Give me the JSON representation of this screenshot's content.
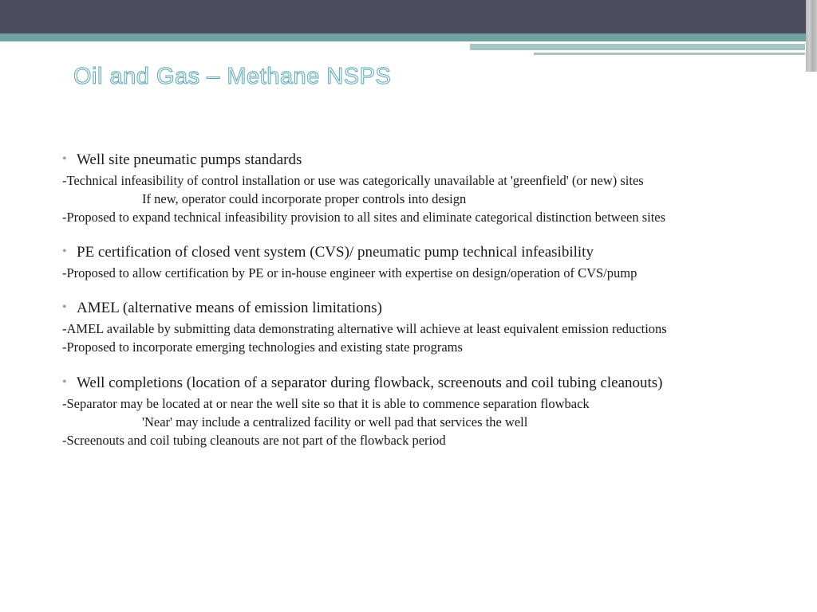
{
  "title": "Oil and Gas – Methane NSPS",
  "colors": {
    "top_bar_dark": "#4a4e5c",
    "top_bar_teal": "#6fa3a3",
    "accent_light": "#a8c5c5",
    "title_stroke": "#5aa8b8",
    "bullet_color": "#a890b8",
    "text_color": "#1a1a1a",
    "background": "#ffffff"
  },
  "typography": {
    "title_fontsize": 29,
    "bullet_fontsize": 19,
    "body_fontsize": 16.5,
    "body_family": "Georgia"
  },
  "sections": [
    {
      "heading": "Well site pneumatic pumps standards",
      "lines": [
        {
          "type": "dash",
          "text": "-Technical infeasibility of control installation or use was categorically unavailable at 'greenfield' (or new) sites"
        },
        {
          "type": "indent",
          "text": "If new, operator could incorporate proper controls into design"
        },
        {
          "type": "dash",
          "text": "-Proposed to expand technical infeasibility provision to all sites and eliminate categorical distinction between sites"
        }
      ]
    },
    {
      "heading": "PE certification of closed vent system (CVS)/ pneumatic pump technical infeasibility",
      "lines": [
        {
          "type": "dash",
          "text": "-Proposed to allow certification by PE or in-house engineer with expertise on design/operation of CVS/pump"
        }
      ]
    },
    {
      "heading": "AMEL (alternative means of emission limitations)",
      "lines": [
        {
          "type": "dash",
          "text": "-AMEL available by submitting data demonstrating alternative will achieve  at least equivalent emission reductions"
        },
        {
          "type": "dash",
          "text": "-Proposed to incorporate emerging technologies and existing state programs"
        }
      ]
    },
    {
      "heading": "Well completions (location of a separator during flowback, screenouts and coil tubing cleanouts)",
      "lines": [
        {
          "type": "dash",
          "text": "-Separator may be located at or near the well site so that it is able to commence separation flowback"
        },
        {
          "type": "indent",
          "text": "'Near' may include a centralized facility or well pad that services the well"
        },
        {
          "type": "dash",
          "text": "-Screenouts and coil tubing cleanouts are not part of the flowback period"
        }
      ]
    }
  ]
}
